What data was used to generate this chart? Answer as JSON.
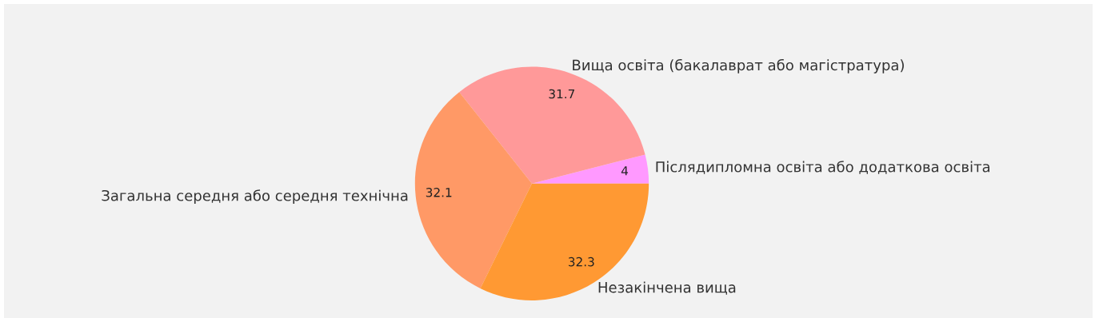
{
  "chart_data": {
    "type": "pie",
    "categories": [
      "Післядипломна освіта або додаткова освіта",
      "Вища освіта (бакалаврат або магістратура)",
      "Загальна середня або середня технічна",
      "Незакінчена вища"
    ],
    "values": [
      4,
      31.7,
      32.1,
      32.3
    ],
    "colors": [
      "#ff99ff",
      "#ff9999",
      "#ff9966",
      "#ff9933"
    ],
    "data_labels": true,
    "legend": false
  }
}
